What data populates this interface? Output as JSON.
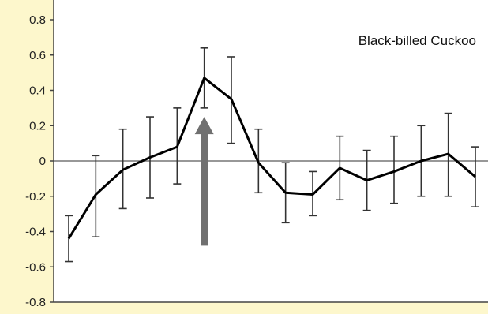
{
  "chart_data": {
    "type": "line",
    "title": "Black-billed Cuckoo",
    "xlabel": "",
    "ylabel": "",
    "ylim": [
      -0.8,
      0.8
    ],
    "y_ticks": [
      "0.8",
      "0.6",
      "0.4",
      "0.2",
      "0",
      "-0.2",
      "-0.4",
      "-0.6",
      "-0.8"
    ],
    "y_tick_values": [
      0.8,
      0.6,
      0.4,
      0.2,
      0,
      -0.2,
      -0.4,
      -0.6,
      -0.8
    ],
    "x": [
      1,
      2,
      3,
      4,
      5,
      6,
      7,
      8,
      9,
      10,
      11,
      12,
      13,
      14,
      15,
      16
    ],
    "series": [
      {
        "values": [
          -0.44,
          -0.19,
          -0.05,
          0.02,
          0.08,
          0.47,
          0.35,
          -0.01,
          -0.18,
          -0.19,
          -0.04,
          -0.11,
          -0.06,
          0.0,
          0.04,
          -0.09
        ],
        "err_upper": [
          -0.31,
          0.03,
          0.18,
          0.25,
          0.3,
          0.64,
          0.59,
          0.18,
          -0.01,
          -0.06,
          0.14,
          0.06,
          0.14,
          0.2,
          0.27,
          0.08
        ],
        "err_lower": [
          -0.57,
          -0.43,
          -0.27,
          -0.21,
          -0.13,
          0.3,
          0.1,
          -0.18,
          -0.35,
          -0.31,
          -0.22,
          -0.28,
          -0.24,
          -0.2,
          -0.2,
          -0.26
        ]
      }
    ],
    "grid": false,
    "zero_line": true,
    "annotation": {
      "type": "arrow",
      "x": 6,
      "y_from": -0.48,
      "y_to": 0.25,
      "color": "#707070"
    },
    "colors": {
      "background": "#fdf7cc",
      "plot_background": "#ffffff",
      "line": "#000000",
      "zero_line": "#777777"
    }
  }
}
